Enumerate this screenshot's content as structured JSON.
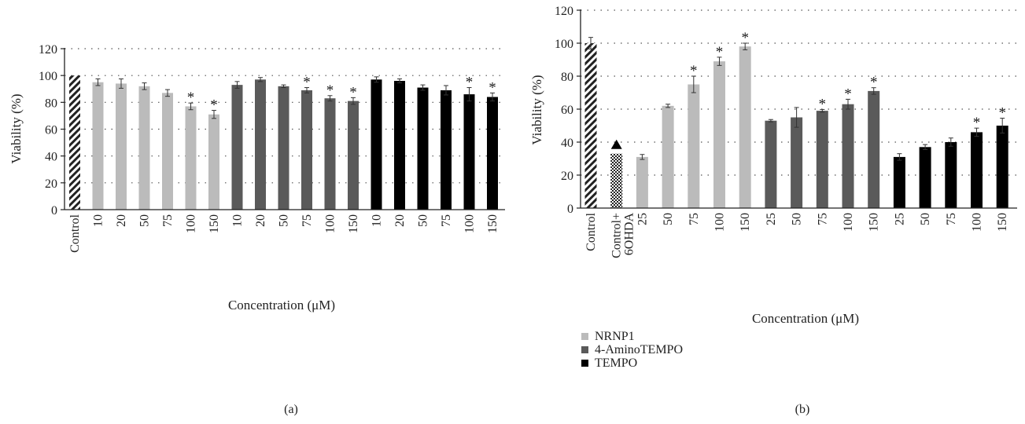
{
  "chart_data": [
    {
      "type": "bar",
      "panel_label": "(a)",
      "xlabel": "Concentration (μM)",
      "ylabel": "Viability (%)",
      "ylim": [
        0,
        120
      ],
      "yticks": [
        0,
        20,
        40,
        60,
        80,
        100,
        120
      ],
      "grid": "horizontal dotted",
      "categories": [
        "Control",
        "10",
        "20",
        "50",
        "75",
        "100",
        "150",
        "10",
        "20",
        "50",
        "75",
        "100",
        "150",
        "10",
        "20",
        "50",
        "75",
        "100",
        "150"
      ],
      "values": [
        100,
        95,
        94,
        92,
        87,
        77,
        71,
        93,
        97,
        92,
        89,
        83,
        81,
        97,
        96,
        91,
        89,
        86,
        84
      ],
      "errors": [
        0,
        2.5,
        3.5,
        2.5,
        2.5,
        2.5,
        3,
        2.5,
        1.5,
        1,
        2,
        2,
        2.5,
        2,
        1.5,
        2,
        3.5,
        5,
        3
      ],
      "groups": [
        "control",
        "NRNP1",
        "NRNP1",
        "NRNP1",
        "NRNP1",
        "NRNP1",
        "NRNP1",
        "4-AminoTEMPO",
        "4-AminoTEMPO",
        "4-AminoTEMPO",
        "4-AminoTEMPO",
        "4-AminoTEMPO",
        "4-AminoTEMPO",
        "TEMPO",
        "TEMPO",
        "TEMPO",
        "TEMPO",
        "TEMPO",
        "TEMPO"
      ],
      "significance": [
        false,
        false,
        false,
        false,
        false,
        true,
        true,
        false,
        false,
        false,
        true,
        true,
        true,
        false,
        false,
        false,
        false,
        true,
        true
      ],
      "annotation_symbol": "*"
    },
    {
      "type": "bar",
      "panel_label": "(b)",
      "xlabel": "Concentration (μM)",
      "ylabel": "Viability (%)",
      "ylim": [
        0,
        120
      ],
      "yticks": [
        0,
        20,
        40,
        60,
        80,
        100,
        120
      ],
      "grid": "horizontal dotted",
      "categories": [
        "Control",
        "Control+\n6OHDA",
        "25",
        "50",
        "75",
        "100",
        "150",
        "25",
        "50",
        "75",
        "100",
        "150",
        "25",
        "50",
        "75",
        "100",
        "150"
      ],
      "values": [
        100,
        33,
        31,
        62,
        75,
        89,
        98,
        53,
        55,
        59,
        63,
        71,
        31,
        37,
        40,
        46,
        50
      ],
      "errors": [
        3.5,
        0,
        1.5,
        1,
        5,
        2.5,
        2,
        0.7,
        6,
        0.8,
        3,
        2,
        2,
        1.5,
        2.5,
        2.5,
        4.5
      ],
      "groups": [
        "control",
        "ohda",
        "NRNP1",
        "NRNP1",
        "NRNP1",
        "NRNP1",
        "NRNP1",
        "4-AminoTEMPO",
        "4-AminoTEMPO",
        "4-AminoTEMPO",
        "4-AminoTEMPO",
        "4-AminoTEMPO",
        "TEMPO",
        "TEMPO",
        "TEMPO",
        "TEMPO",
        "TEMPO"
      ],
      "significance": [
        false,
        false,
        false,
        false,
        true,
        true,
        true,
        false,
        false,
        true,
        true,
        true,
        false,
        false,
        false,
        true,
        true
      ],
      "annotation_symbol": "*",
      "triangle_marker_on": "Control+\n6OHDA",
      "legend_position": "bottom-left",
      "legend": [
        {
          "name": "NRNP1",
          "color": "#bbbbbb"
        },
        {
          "name": "4-AminoTEMPO",
          "color": "#5a5a5a"
        },
        {
          "name": "TEMPO",
          "color": "#000000"
        }
      ]
    }
  ],
  "colors": {
    "NRNP1": "#bbbbbb",
    "4-AminoTEMPO": "#5a5a5a",
    "TEMPO": "#000000",
    "axis": "#222222"
  }
}
